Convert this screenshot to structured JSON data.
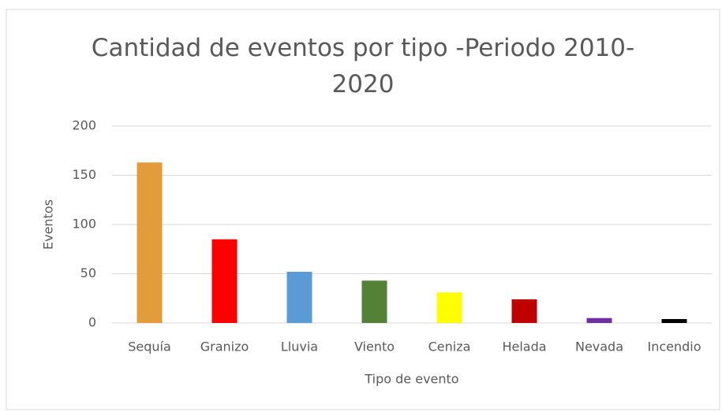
{
  "chart_data": {
    "type": "bar",
    "title": "Cantidad de eventos por tipo -Periodo 2010-2020",
    "x_label": "Tipo de evento",
    "y_label": "Eventos",
    "categories": [
      "Sequía",
      "Granizo",
      "Lluvia",
      "Viento",
      "Ceniza",
      "Helada",
      "Nevada",
      "Incendio"
    ],
    "values": [
      163,
      85,
      52,
      43,
      31,
      24,
      5,
      4
    ],
    "colors": [
      "#e39c3c",
      "#ff0000",
      "#5b9bd5",
      "#538135",
      "#ffff00",
      "#c00000",
      "#7030a0",
      "#000000"
    ],
    "ylim": [
      0,
      200
    ],
    "yticks": [
      0,
      50,
      100,
      150,
      200
    ],
    "grid": true
  }
}
